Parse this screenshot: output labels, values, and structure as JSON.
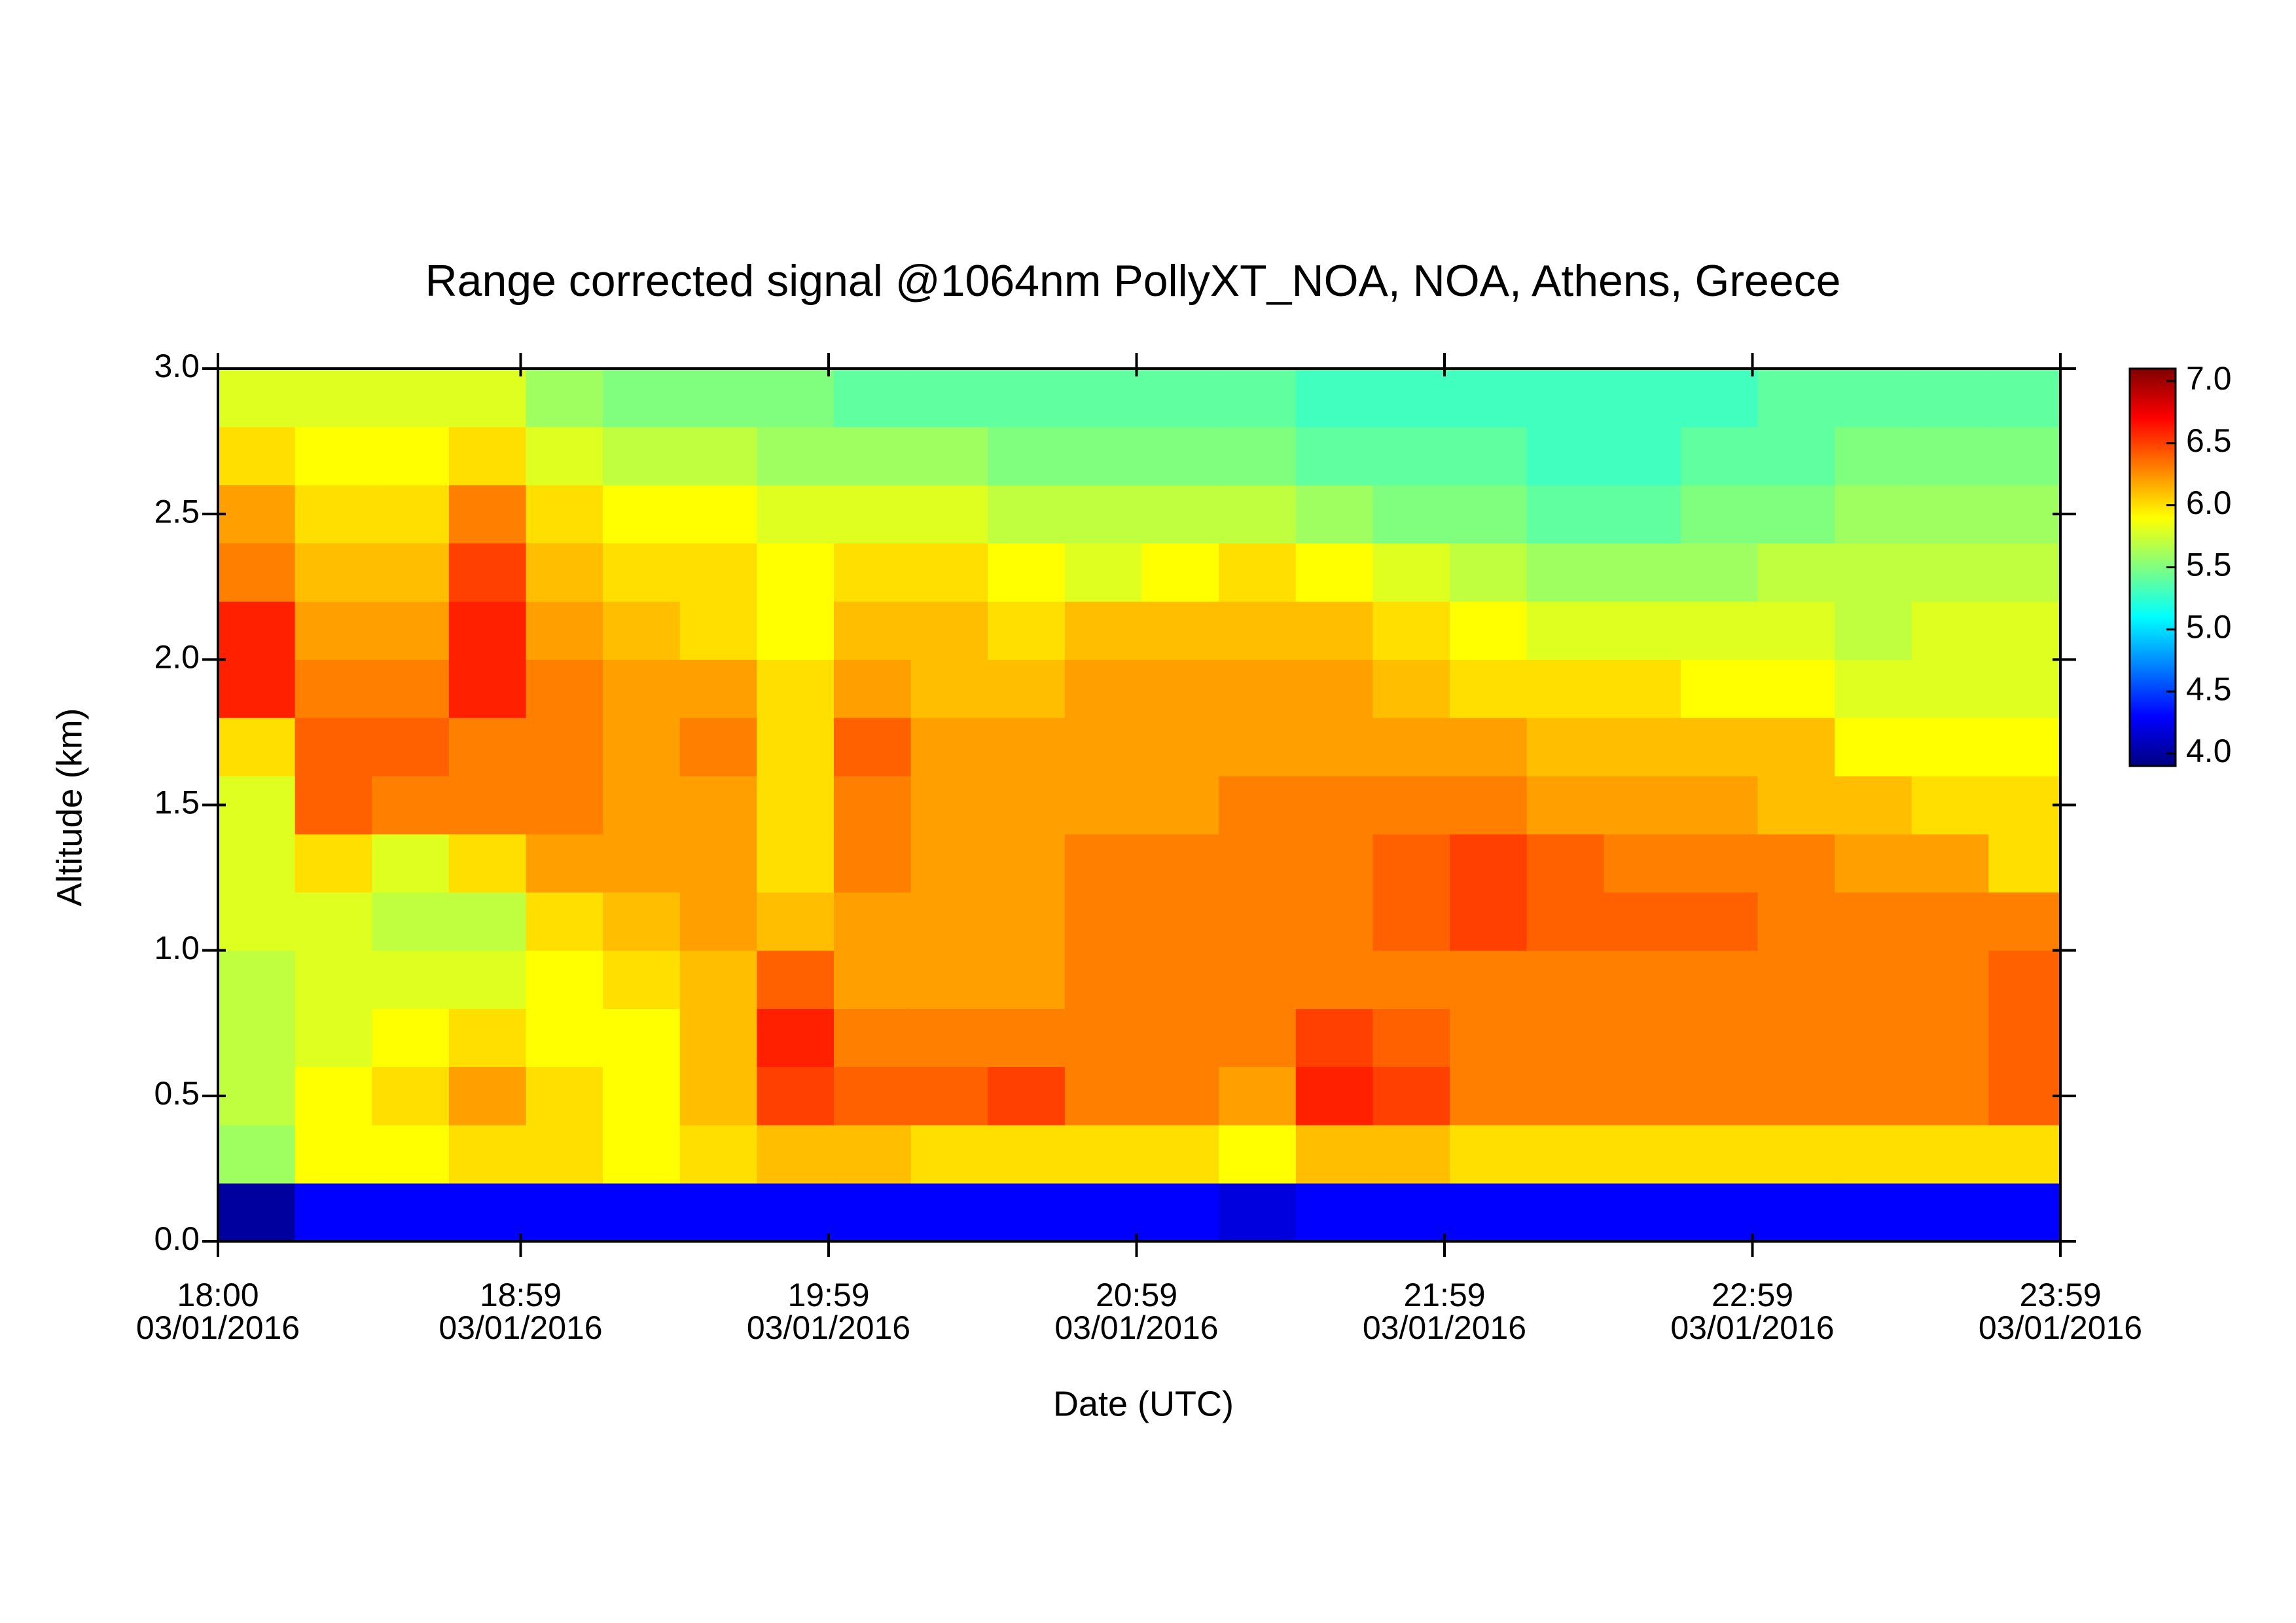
{
  "chart_data": {
    "type": "heatmap",
    "title": "Range corrected signal @1064nm  PollyXT_NOA, NOA, Athens, Greece",
    "x_label": "Date (UTC)",
    "y_label": "Altitude (km)",
    "xlim": [
      18,
      23.983
    ],
    "xticks": [
      {
        "value": 18,
        "label": [
          "18:00",
          "03/01/2016"
        ]
      },
      {
        "value": 18.983,
        "label": [
          "18:59",
          "03/01/2016"
        ]
      },
      {
        "value": 19.983,
        "label": [
          "19:59",
          "03/01/2016"
        ]
      },
      {
        "value": 20.983,
        "label": [
          "20:59",
          "03/01/2016"
        ]
      },
      {
        "value": 21.983,
        "label": [
          "21:59",
          "03/01/2016"
        ]
      },
      {
        "value": 22.983,
        "label": [
          "22:59",
          "03/01/2016"
        ]
      },
      {
        "value": 23.983,
        "label": [
          "23:59",
          "03/01/2016"
        ]
      }
    ],
    "ylim": [
      0,
      3
    ],
    "yticks": [
      {
        "value": 0,
        "label": "0.0"
      },
      0.5,
      {
        "value": 1,
        "label": "1.0"
      },
      1.5,
      {
        "value": 2,
        "label": "2.0"
      },
      2.5,
      {
        "value": 3,
        "label": "3.0"
      }
    ],
    "colormap": "jet",
    "clim": [
      3.9,
      7.1
    ],
    "cticks": [
      {
        "value": 4,
        "label": "4.0"
      },
      4.5,
      {
        "value": 5,
        "label": "5.0"
      },
      5.5,
      {
        "value": 6,
        "label": "6.0"
      },
      6.5,
      {
        "value": 7,
        "label": "7.0"
      }
    ],
    "x": [
      18.125,
      18.375,
      18.625,
      18.875,
      19.125,
      19.375,
      19.625,
      19.875,
      20.125,
      20.375,
      20.625,
      20.875,
      21.125,
      21.375,
      21.625,
      21.875,
      22.125,
      22.375,
      22.625,
      22.875,
      23.125,
      23.375,
      23.625,
      23.875
    ],
    "y": [
      0.1,
      0.3,
      0.5,
      0.7,
      0.9,
      1.1,
      1.3,
      1.5,
      1.7,
      1.9,
      2.1,
      2.3,
      2.5,
      2.7,
      2.9
    ],
    "z": [
      [
        4.0,
        4.3,
        4.3,
        4.3,
        4.3,
        4.3,
        4.3,
        4.3,
        4.3,
        4.3,
        4.3,
        4.3,
        4.3,
        4.2,
        4.3,
        4.3,
        4.3,
        4.3,
        4.3,
        4.3,
        4.3,
        4.3,
        4.3,
        4.3
      ],
      [
        5.6,
        5.9,
        5.9,
        6.0,
        6.0,
        5.9,
        6.0,
        6.1,
        6.1,
        6.0,
        6.0,
        6.0,
        6.0,
        5.9,
        6.1,
        6.1,
        6.0,
        6.0,
        6.0,
        6.0,
        6.0,
        6.0,
        6.0,
        6.0
      ],
      [
        5.7,
        5.9,
        6.0,
        6.2,
        6.0,
        5.9,
        6.1,
        6.5,
        6.4,
        6.4,
        6.5,
        6.3,
        6.3,
        6.2,
        6.6,
        6.5,
        6.3,
        6.3,
        6.3,
        6.3,
        6.3,
        6.3,
        6.3,
        6.4
      ],
      [
        5.7,
        5.8,
        5.9,
        6.0,
        5.9,
        5.9,
        6.1,
        6.6,
        6.3,
        6.3,
        6.3,
        6.3,
        6.3,
        6.3,
        6.5,
        6.4,
        6.3,
        6.3,
        6.3,
        6.3,
        6.3,
        6.3,
        6.3,
        6.4
      ],
      [
        5.7,
        5.8,
        5.8,
        5.8,
        5.9,
        6.0,
        6.1,
        6.4,
        6.2,
        6.2,
        6.2,
        6.3,
        6.3,
        6.3,
        6.3,
        6.3,
        6.3,
        6.3,
        6.3,
        6.3,
        6.3,
        6.3,
        6.3,
        6.4
      ],
      [
        5.8,
        5.8,
        5.7,
        5.7,
        6.0,
        6.1,
        6.2,
        6.1,
        6.2,
        6.2,
        6.2,
        6.3,
        6.3,
        6.3,
        6.3,
        6.4,
        6.5,
        6.4,
        6.4,
        6.4,
        6.3,
        6.3,
        6.3,
        6.3
      ],
      [
        5.8,
        6.0,
        5.8,
        6.0,
        6.2,
        6.2,
        6.2,
        6.0,
        6.3,
        6.2,
        6.2,
        6.3,
        6.3,
        6.3,
        6.3,
        6.4,
        6.5,
        6.4,
        6.3,
        6.3,
        6.3,
        6.2,
        6.2,
        6.0
      ],
      [
        5.8,
        6.4,
        6.3,
        6.3,
        6.3,
        6.2,
        6.2,
        6.0,
        6.3,
        6.2,
        6.2,
        6.2,
        6.2,
        6.3,
        6.3,
        6.3,
        6.3,
        6.2,
        6.2,
        6.2,
        6.1,
        6.1,
        6.0,
        6.0
      ],
      [
        6.0,
        6.4,
        6.4,
        6.3,
        6.3,
        6.2,
        6.3,
        6.0,
        6.4,
        6.2,
        6.2,
        6.2,
        6.2,
        6.2,
        6.2,
        6.2,
        6.2,
        6.1,
        6.1,
        6.1,
        6.1,
        5.9,
        5.9,
        5.9
      ],
      [
        6.6,
        6.3,
        6.3,
        6.6,
        6.3,
        6.2,
        6.2,
        6.0,
        6.2,
        6.1,
        6.1,
        6.2,
        6.2,
        6.2,
        6.2,
        6.1,
        6.0,
        6.0,
        6.0,
        5.9,
        5.9,
        5.8,
        5.8,
        5.8
      ],
      [
        6.6,
        6.2,
        6.2,
        6.6,
        6.2,
        6.1,
        6.0,
        5.9,
        6.1,
        6.1,
        6.0,
        6.1,
        6.1,
        6.1,
        6.1,
        6.0,
        5.9,
        5.8,
        5.8,
        5.8,
        5.8,
        5.7,
        5.8,
        5.8
      ],
      [
        6.3,
        6.1,
        6.1,
        6.5,
        6.1,
        6.0,
        6.0,
        5.9,
        6.0,
        6.0,
        5.9,
        5.8,
        5.9,
        6.0,
        5.9,
        5.8,
        5.7,
        5.6,
        5.6,
        5.6,
        5.7,
        5.7,
        5.7,
        5.7
      ],
      [
        6.2,
        6.0,
        6.0,
        6.3,
        6.0,
        5.9,
        5.9,
        5.8,
        5.8,
        5.8,
        5.7,
        5.7,
        5.7,
        5.7,
        5.6,
        5.5,
        5.5,
        5.4,
        5.4,
        5.5,
        5.5,
        5.6,
        5.6,
        5.6
      ],
      [
        6.0,
        5.9,
        5.9,
        6.0,
        5.8,
        5.7,
        5.7,
        5.6,
        5.6,
        5.6,
        5.5,
        5.5,
        5.5,
        5.5,
        5.4,
        5.4,
        5.4,
        5.3,
        5.3,
        5.4,
        5.4,
        5.5,
        5.5,
        5.5
      ],
      [
        5.8,
        5.8,
        5.8,
        5.8,
        5.6,
        5.5,
        5.5,
        5.5,
        5.4,
        5.4,
        5.4,
        5.4,
        5.4,
        5.4,
        5.3,
        5.3,
        5.3,
        5.3,
        5.3,
        5.3,
        5.4,
        5.4,
        5.4,
        5.4
      ]
    ]
  }
}
